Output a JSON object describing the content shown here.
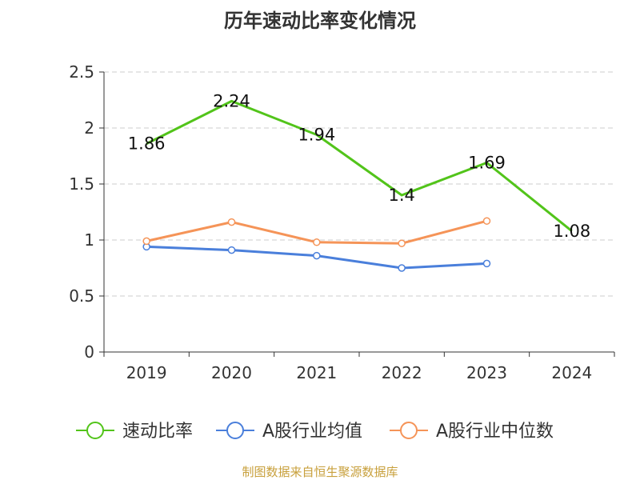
{
  "chart_data": {
    "type": "line",
    "title": "历年速动比率变化情况",
    "xlabel": "",
    "ylabel": "",
    "categories": [
      "2019",
      "2020",
      "2021",
      "2022",
      "2023",
      "2024"
    ],
    "ylim": [
      0,
      2.5
    ],
    "yticks": [
      "0",
      "0.5",
      "1",
      "1.5",
      "2",
      "2.5"
    ],
    "grid": true,
    "legend_position": "bottom",
    "series": [
      {
        "name": "速动比率",
        "color": "#52c41a",
        "values": [
          1.86,
          2.24,
          1.94,
          1.4,
          1.69,
          1.08
        ],
        "labels": [
          "1.86",
          "2.24",
          "1.94",
          "1.4",
          "1.69",
          "1.08"
        ]
      },
      {
        "name": "A股行业均值",
        "color": "#4a7fdb",
        "values": [
          0.94,
          0.91,
          0.86,
          0.75,
          0.79,
          null
        ]
      },
      {
        "name": "A股行业中位数",
        "color": "#f59458",
        "values": [
          0.99,
          1.16,
          0.98,
          0.97,
          1.17,
          null
        ]
      }
    ]
  },
  "source": "制图数据来自恒生聚源数据库"
}
